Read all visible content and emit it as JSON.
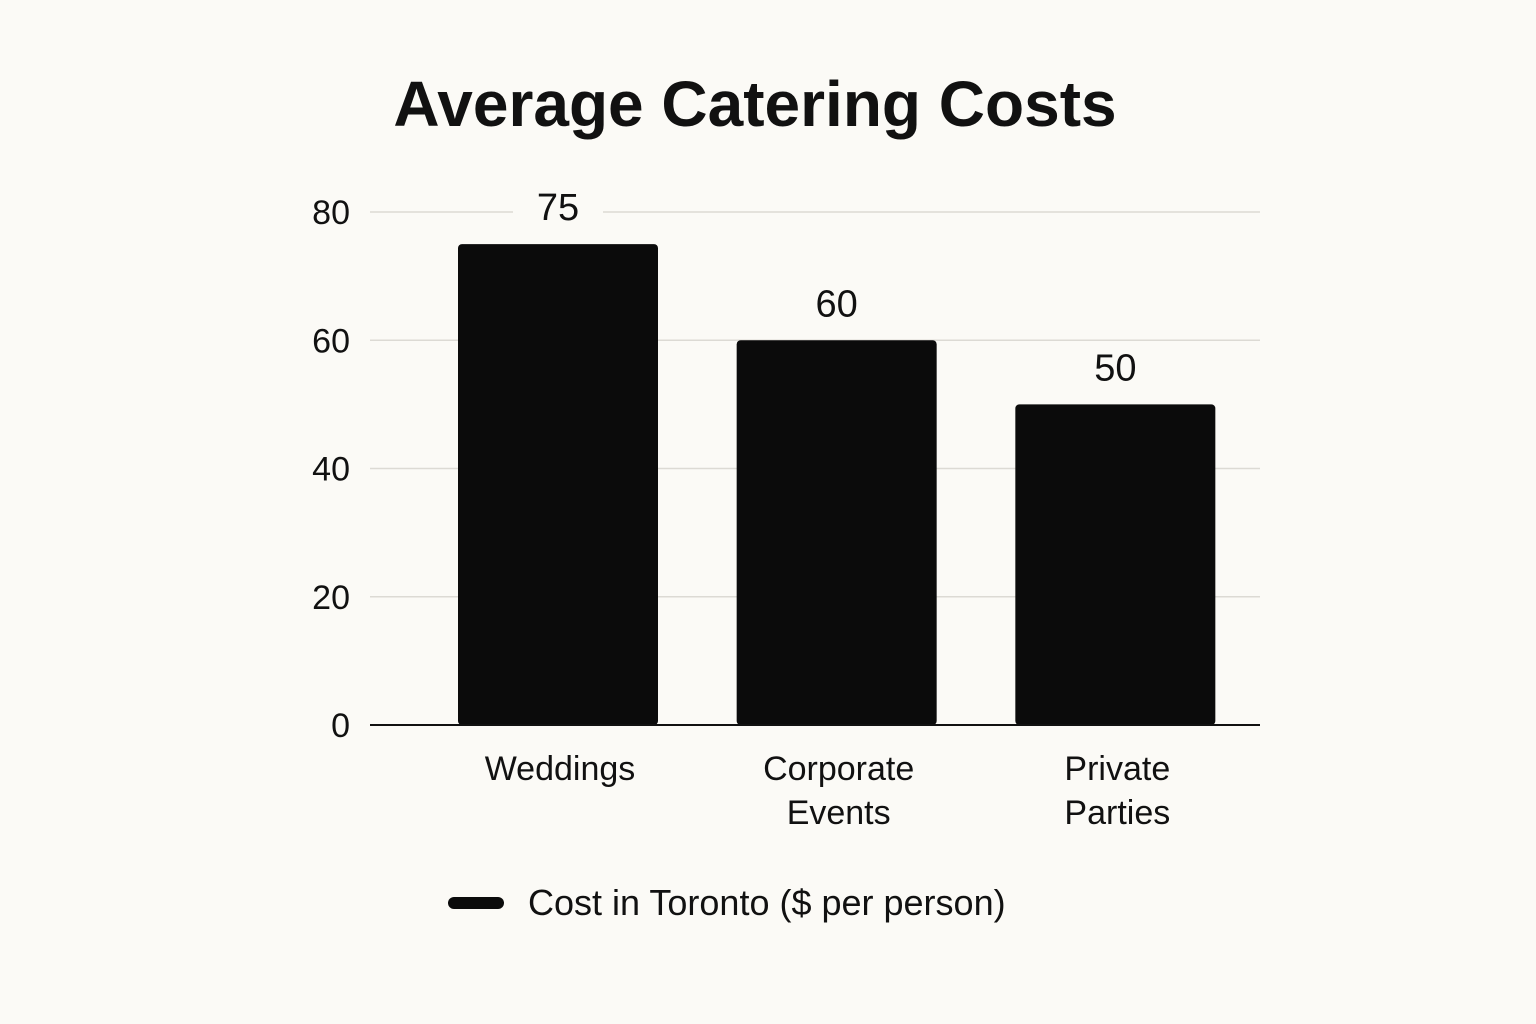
{
  "chart_data": {
    "type": "bar",
    "title": "Average Catering Costs",
    "categories": [
      [
        "Weddings"
      ],
      [
        "Corporate",
        "Events"
      ],
      [
        "Private",
        "Parties"
      ]
    ],
    "series": [
      {
        "name": "Cost in Toronto ($ per person)",
        "values": [
          75,
          60,
          50
        ],
        "color": "#0b0b0b"
      }
    ],
    "xlabel": "",
    "ylabel": "",
    "ylim": [
      0,
      80
    ],
    "yticks": [
      0,
      20,
      40,
      60,
      80
    ],
    "grid": true,
    "legend_position": "bottom-center"
  }
}
